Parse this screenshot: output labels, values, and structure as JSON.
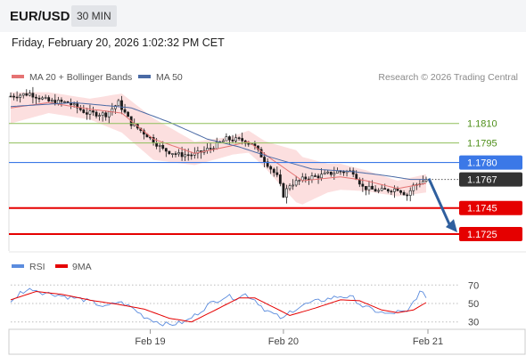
{
  "header": {
    "symbol": "EUR/USD",
    "timeframe": "30 MIN",
    "datetime": "Friday, February 20, 2026 1:02:32 PM CET",
    "credit": "Research © 2026 Trading Central"
  },
  "legend": {
    "ma20_label": "MA 20 + Bollinger Bands",
    "ma50_label": "MA 50",
    "rsi_label": "RSI",
    "ma9_label": "9MA"
  },
  "colors": {
    "candle": "#1b1b1b",
    "ma20": "#e57373",
    "bollinger_fill": "#fbd9d9",
    "ma50": "#4a6aa5",
    "resistance": "#8fbf5a",
    "resistance_text": "#4e8f1a",
    "pivot": "#3b78e7",
    "support": "#e50000",
    "current": "#333333",
    "rsi": "#5b8cde",
    "rsi_ma": "#e50000",
    "arrow": "#2f5f9e"
  },
  "chart_data": [
    {
      "type": "candlestick",
      "title": "",
      "x_ticks": [
        "Feb 19",
        "Feb 20",
        "Feb 21"
      ],
      "ylim": [
        1.1712,
        1.1831
      ],
      "levels": [
        {
          "label": "1.1810",
          "value": 1.181,
          "kind": "resistance"
        },
        {
          "label": "1.1795",
          "value": 1.1795,
          "kind": "resistance"
        },
        {
          "label": "1.1780",
          "value": 1.178,
          "kind": "pivot"
        },
        {
          "label": "1.1767",
          "value": 1.1767,
          "kind": "current"
        },
        {
          "label": "1.1745",
          "value": 1.1745,
          "kind": "support"
        },
        {
          "label": "1.1725",
          "value": 1.1725,
          "kind": "support"
        }
      ],
      "close_anchors": [
        [
          0,
          1.1831
        ],
        [
          6,
          1.1833
        ],
        [
          12,
          1.1827
        ],
        [
          18,
          1.1826
        ],
        [
          24,
          1.1818
        ],
        [
          30,
          1.1817
        ],
        [
          34,
          1.1826
        ],
        [
          38,
          1.181
        ],
        [
          43,
          1.1801
        ],
        [
          48,
          1.179
        ],
        [
          53,
          1.1786
        ],
        [
          58,
          1.1786
        ],
        [
          63,
          1.1791
        ],
        [
          68,
          1.1798
        ],
        [
          73,
          1.1797
        ],
        [
          76,
          1.1795
        ],
        [
          80,
          1.1782
        ],
        [
          84,
          1.1769
        ],
        [
          86,
          1.1755
        ],
        [
          88,
          1.1763
        ],
        [
          93,
          1.1768
        ],
        [
          98,
          1.177
        ],
        [
          103,
          1.1773
        ],
        [
          108,
          1.1773
        ],
        [
          111,
          1.1761
        ],
        [
          116,
          1.1758
        ],
        [
          122,
          1.176
        ],
        [
          125,
          1.1755
        ],
        [
          127,
          1.1762
        ],
        [
          131,
          1.1767
        ]
      ],
      "ma20_anchors": [
        [
          0,
          1.1822
        ],
        [
          12,
          1.1826
        ],
        [
          25,
          1.1821
        ],
        [
          35,
          1.1818
        ],
        [
          45,
          1.1798
        ],
        [
          58,
          1.1787
        ],
        [
          68,
          1.1792
        ],
        [
          75,
          1.1796
        ],
        [
          82,
          1.1783
        ],
        [
          92,
          1.1766
        ],
        [
          104,
          1.1769
        ],
        [
          112,
          1.1766
        ],
        [
          122,
          1.176
        ],
        [
          131,
          1.1764
        ]
      ],
      "bb_width_anchors": [
        [
          0,
          0.0012
        ],
        [
          12,
          0.0008
        ],
        [
          25,
          0.0008
        ],
        [
          35,
          0.0015
        ],
        [
          45,
          0.0016
        ],
        [
          58,
          0.0009
        ],
        [
          70,
          0.0007
        ],
        [
          80,
          0.001
        ],
        [
          90,
          0.002
        ],
        [
          100,
          0.0011
        ],
        [
          112,
          0.0008
        ],
        [
          122,
          0.0006
        ],
        [
          131,
          0.0007
        ]
      ],
      "ma50_anchors": [
        [
          0,
          1.1823
        ],
        [
          20,
          1.1826
        ],
        [
          38,
          1.1822
        ],
        [
          50,
          1.1811
        ],
        [
          62,
          1.1798
        ],
        [
          72,
          1.1792
        ],
        [
          82,
          1.1784
        ],
        [
          95,
          1.1775
        ],
        [
          108,
          1.1773
        ],
        [
          118,
          1.177
        ],
        [
          126,
          1.1767
        ],
        [
          131,
          1.1767
        ]
      ]
    },
    {
      "type": "line",
      "title": "",
      "y_ticks": [
        30,
        50,
        70
      ],
      "ylim": [
        22,
        78
      ],
      "rsi_anchors": [
        [
          0,
          50
        ],
        [
          3,
          62
        ],
        [
          7,
          66
        ],
        [
          10,
          62
        ],
        [
          14,
          60
        ],
        [
          18,
          57
        ],
        [
          22,
          55
        ],
        [
          26,
          51
        ],
        [
          30,
          46
        ],
        [
          34,
          52
        ],
        [
          38,
          46
        ],
        [
          42,
          36
        ],
        [
          47,
          29
        ],
        [
          50,
          27
        ],
        [
          55,
          30
        ],
        [
          58,
          37
        ],
        [
          63,
          50
        ],
        [
          68,
          58
        ],
        [
          71,
          56
        ],
        [
          74,
          60
        ],
        [
          77,
          54
        ],
        [
          80,
          44
        ],
        [
          83,
          38
        ],
        [
          86,
          33
        ],
        [
          88,
          41
        ],
        [
          92,
          48
        ],
        [
          96,
          52
        ],
        [
          100,
          55
        ],
        [
          104,
          58
        ],
        [
          108,
          56
        ],
        [
          111,
          47
        ],
        [
          115,
          42
        ],
        [
          119,
          38
        ],
        [
          122,
          41
        ],
        [
          125,
          40
        ],
        [
          127,
          52
        ],
        [
          129,
          62
        ],
        [
          131,
          58
        ]
      ],
      "rsi_ma_anchors": [
        [
          0,
          54
        ],
        [
          8,
          63
        ],
        [
          16,
          60
        ],
        [
          26,
          53
        ],
        [
          34,
          49
        ],
        [
          42,
          44
        ],
        [
          50,
          34
        ],
        [
          57,
          30
        ],
        [
          64,
          42
        ],
        [
          72,
          56
        ],
        [
          77,
          56
        ],
        [
          84,
          44
        ],
        [
          88,
          37
        ],
        [
          96,
          45
        ],
        [
          104,
          54
        ],
        [
          110,
          53
        ],
        [
          117,
          43
        ],
        [
          122,
          40
        ],
        [
          127,
          43
        ],
        [
          131,
          51
        ]
      ]
    }
  ]
}
